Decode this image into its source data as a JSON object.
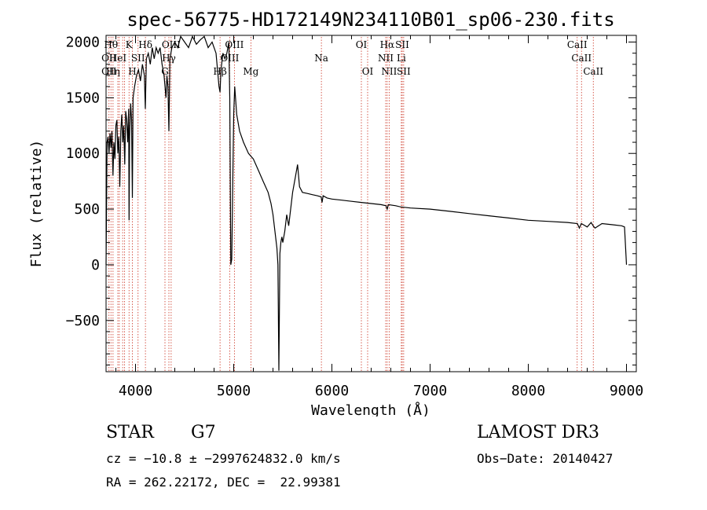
{
  "chart_data": {
    "type": "line",
    "title": "spec-56775-HD172149N234110B01_sp06-230.fits",
    "xlabel": "Wavelength (Å)",
    "ylabel": "Flux (relative)",
    "xlim": [
      3700,
      9100
    ],
    "ylim": [
      -960,
      2060
    ],
    "xticks": [
      4000,
      5000,
      6000,
      7000,
      8000,
      9000
    ],
    "yticks": [
      -500,
      0,
      500,
      1000,
      1500,
      2000
    ],
    "xtick_labels": [
      "4000",
      "5000",
      "6000",
      "7000",
      "8000",
      "9000"
    ],
    "ytick_labels": [
      "−500",
      "0",
      "500",
      "1000",
      "1500",
      "2000"
    ],
    "series": [
      {
        "name": "spectrum",
        "x": [
          3700,
          3710,
          3720,
          3730,
          3740,
          3750,
          3760,
          3770,
          3780,
          3790,
          3800,
          3810,
          3820,
          3830,
          3840,
          3850,
          3860,
          3870,
          3880,
          3890,
          3900,
          3910,
          3920,
          3930,
          3934,
          3940,
          3950,
          3960,
          3968,
          3975,
          3990,
          4010,
          4030,
          4050,
          4070,
          4090,
          4100,
          4110,
          4130,
          4150,
          4170,
          4190,
          4210,
          4230,
          4250,
          4270,
          4290,
          4310,
          4320,
          4330,
          4340,
          4350,
          4370,
          4400,
          4430,
          4460,
          4500,
          4540,
          4580,
          4620,
          4660,
          4700,
          4740,
          4780,
          4820,
          4850,
          4861,
          4870,
          4890,
          4910,
          4930,
          4950,
          4960,
          4970,
          4980,
          5000,
          5010,
          5030,
          5060,
          5100,
          5150,
          5200,
          5250,
          5300,
          5350,
          5380,
          5400,
          5420,
          5440,
          5450,
          5460,
          5470,
          5480,
          5490,
          5500,
          5520,
          5540,
          5560,
          5600,
          5630,
          5650,
          5670,
          5700,
          5750,
          5800,
          5850,
          5890,
          5900,
          5910,
          5950,
          6000,
          6100,
          6200,
          6300,
          6400,
          6500,
          6550,
          6563,
          6575,
          6650,
          6700,
          6800,
          7000,
          7200,
          7400,
          7600,
          7800,
          8000,
          8200,
          8400,
          8500,
          8520,
          8540,
          8560,
          8600,
          8640,
          8660,
          8680,
          8750,
          8850,
          8950,
          8980,
          9000
        ],
        "y": [
          0,
          1100,
          1150,
          1000,
          1180,
          1050,
          1200,
          800,
          1100,
          950,
          1250,
          1300,
          1000,
          1150,
          700,
          1200,
          1350,
          1100,
          1250,
          900,
          1380,
          1300,
          1100,
          1400,
          400,
          1150,
          1450,
          1300,
          600,
          1500,
          1600,
          1700,
          1750,
          1650,
          1800,
          1700,
          1400,
          1850,
          1900,
          1800,
          1950,
          1850,
          1950,
          1900,
          1950,
          1800,
          1700,
          1500,
          1700,
          1600,
          1200,
          1850,
          1950,
          2000,
          1950,
          2050,
          2000,
          1950,
          2050,
          1980,
          2020,
          2050,
          1950,
          2000,
          1900,
          1600,
          1550,
          1750,
          1900,
          1850,
          1900,
          2000,
          1500,
          0,
          50,
          1350,
          1600,
          1350,
          1200,
          1100,
          1000,
          950,
          850,
          750,
          650,
          550,
          450,
          300,
          150,
          0,
          -950,
          100,
          200,
          250,
          200,
          300,
          450,
          350,
          650,
          800,
          900,
          700,
          650,
          640,
          630,
          620,
          610,
          560,
          620,
          600,
          590,
          580,
          570,
          560,
          550,
          540,
          530,
          500,
          540,
          530,
          520,
          510,
          500,
          480,
          460,
          440,
          420,
          400,
          390,
          380,
          370,
          330,
          370,
          360,
          340,
          380,
          350,
          330,
          370,
          360,
          350,
          340,
          0
        ]
      }
    ],
    "line_markers": [
      {
        "wl": 3730,
        "labels": [
          "OII"
        ]
      },
      {
        "wl": 3750,
        "labels": [
          "Hθ"
        ]
      },
      {
        "wl": 3771,
        "labels": [
          "Hη"
        ]
      },
      {
        "wl": 3820,
        "labels": [
          "HeI"
        ]
      },
      {
        "wl": 3835,
        "labels": [
          "Hη"
        ]
      },
      {
        "wl": 3869,
        "labels": [
          "Hε"
        ]
      },
      {
        "wl": 3889,
        "labels": [
          "H"
        ]
      },
      {
        "wl": 3934,
        "labels": [
          "K"
        ]
      },
      {
        "wl": 3968,
        "labels": [
          "H"
        ]
      },
      {
        "wl": 4026,
        "labels": [
          "SII"
        ]
      },
      {
        "wl": 4101,
        "labels": [
          "Hδ"
        ]
      },
      {
        "wl": 4300,
        "labels": [
          "G"
        ]
      },
      {
        "wl": 4340,
        "labels": [
          "Hγ"
        ]
      },
      {
        "wl": 4363,
        "labels": [
          "OIII"
        ]
      },
      {
        "wl": 4861,
        "labels": [
          "Hβ"
        ]
      },
      {
        "wl": 4959,
        "labels": [
          "OIII"
        ]
      },
      {
        "wl": 5007,
        "labels": [
          "OIII"
        ]
      },
      {
        "wl": 5175,
        "labels": [
          "Mg"
        ]
      },
      {
        "wl": 5893,
        "labels": [
          "Na"
        ]
      },
      {
        "wl": 6300,
        "labels": [
          "OI"
        ]
      },
      {
        "wl": 6364,
        "labels": [
          "OI"
        ]
      },
      {
        "wl": 6548,
        "labels": [
          "NII"
        ]
      },
      {
        "wl": 6563,
        "labels": [
          "Hα"
        ]
      },
      {
        "wl": 6583,
        "labels": [
          "NII"
        ]
      },
      {
        "wl": 6707,
        "labels": [
          "Li"
        ]
      },
      {
        "wl": 6716,
        "labels": [
          "SII"
        ]
      },
      {
        "wl": 6731,
        "labels": [
          "SII"
        ]
      },
      {
        "wl": 8498,
        "labels": [
          "CaII"
        ]
      },
      {
        "wl": 8542,
        "labels": [
          "CaII"
        ]
      },
      {
        "wl": 8662,
        "labels": [
          "CaII"
        ]
      }
    ],
    "line_labels": [
      {
        "text": "Hθ",
        "wl": 3750,
        "row": 0
      },
      {
        "text": "K",
        "wl": 3934,
        "row": 0
      },
      {
        "text": "Hδ",
        "wl": 4101,
        "row": 0
      },
      {
        "text": "OIII",
        "wl": 4363,
        "row": 0
      },
      {
        "text": "OIII",
        "wl": 5007,
        "row": 0
      },
      {
        "text": "OI",
        "wl": 6300,
        "row": 0
      },
      {
        "text": "Hα",
        "wl": 6563,
        "row": 0
      },
      {
        "text": "SII",
        "wl": 6716,
        "row": 0
      },
      {
        "text": "CaII",
        "wl": 8498,
        "row": 0
      },
      {
        "text": "OII",
        "wl": 3730,
        "row": 1
      },
      {
        "text": "HeI",
        "wl": 3820,
        "row": 1
      },
      {
        "text": "SII",
        "wl": 4026,
        "row": 1
      },
      {
        "text": "Hγ",
        "wl": 4340,
        "row": 1
      },
      {
        "text": "OIII",
        "wl": 4959,
        "row": 1
      },
      {
        "text": "Na",
        "wl": 5893,
        "row": 1
      },
      {
        "text": "NII",
        "wl": 6548,
        "row": 1
      },
      {
        "text": "Li",
        "wl": 6707,
        "row": 1
      },
      {
        "text": "CaII",
        "wl": 8542,
        "row": 1
      },
      {
        "text": "OII",
        "wl": 3730,
        "row": 2
      },
      {
        "text": "Hη",
        "wl": 3771,
        "row": 2
      },
      {
        "text": "H",
        "wl": 3968,
        "row": 2
      },
      {
        "text": "G",
        "wl": 4300,
        "row": 2
      },
      {
        "text": "Hβ",
        "wl": 4861,
        "row": 2
      },
      {
        "text": "Mg",
        "wl": 5175,
        "row": 2
      },
      {
        "text": "OI",
        "wl": 6364,
        "row": 2
      },
      {
        "text": "NII",
        "wl": 6583,
        "row": 2
      },
      {
        "text": "SII",
        "wl": 6731,
        "row": 2
      },
      {
        "text": "CaII",
        "wl": 8662,
        "row": 2
      }
    ],
    "colors": {
      "spectrum": "#000000",
      "markers": "#cc3322"
    }
  },
  "info": {
    "object_class": "STAR",
    "subclass": "G7",
    "survey": "LAMOST DR3",
    "cz": "cz = −10.8 ± −2997624832.0 km/s",
    "obs_date": "Obs−Date: 20140427",
    "coords": "RA = 262.22172, DEC =  22.99381"
  }
}
